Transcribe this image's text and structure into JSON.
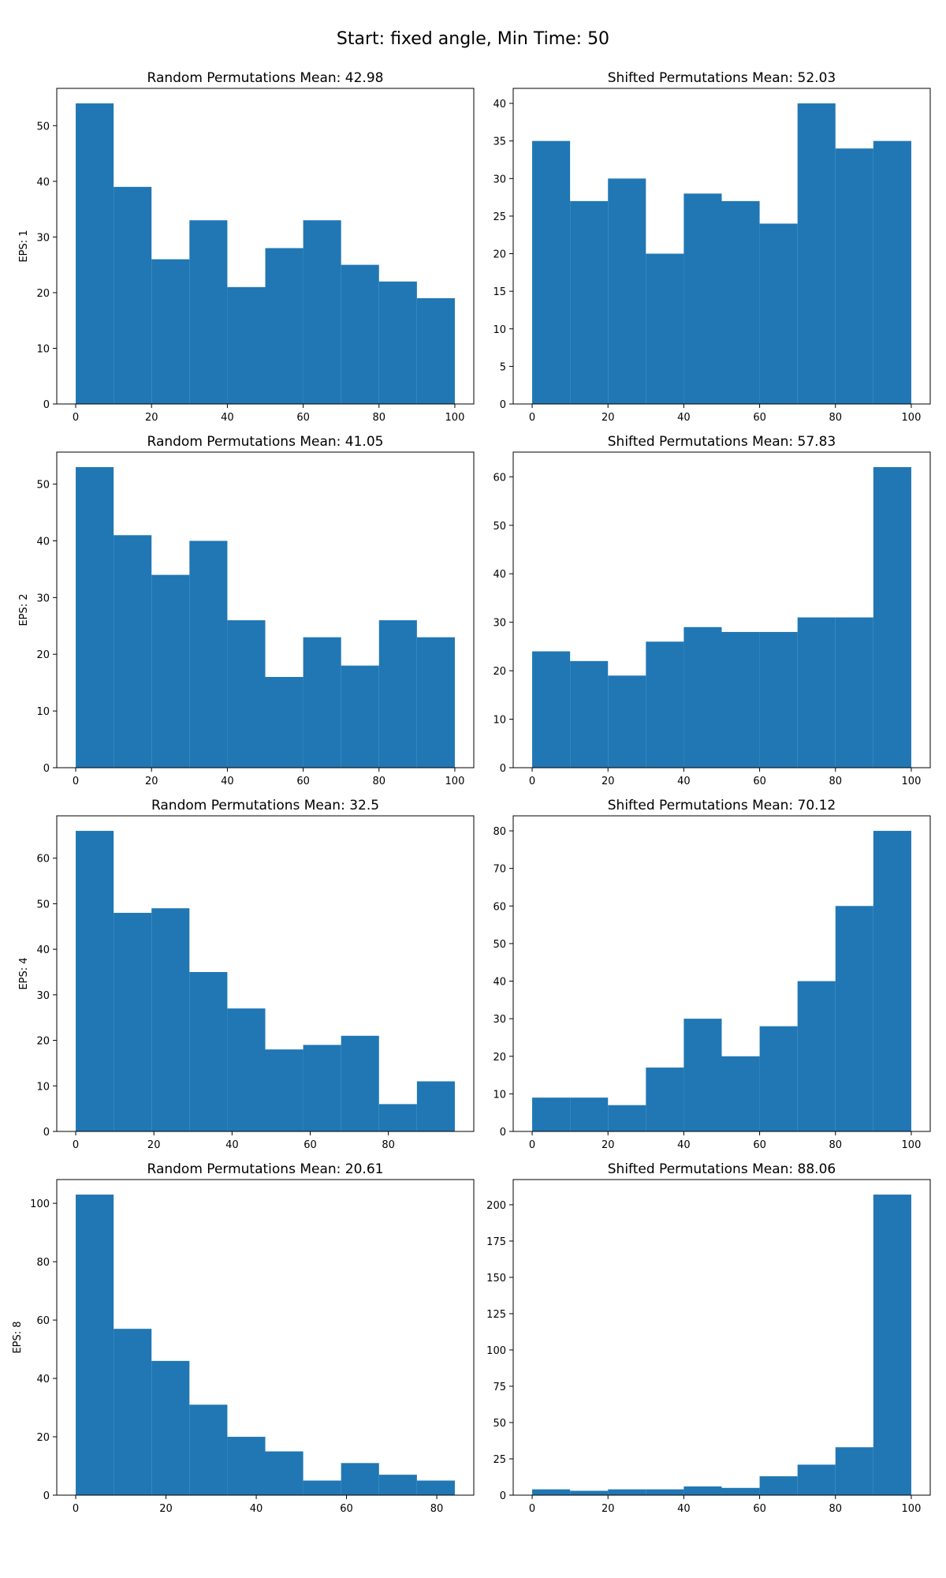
{
  "figure": {
    "suptitle": "Start: fixed angle, Min Time: 50",
    "bar_color": "#2077b4"
  },
  "chart_data": [
    {
      "type": "bar",
      "title": "Random Permutations Mean: 42.98",
      "ylabel": "EPS: 1",
      "bin_edges": [
        0,
        10,
        20,
        30,
        40,
        50,
        60,
        70,
        80,
        90,
        100
      ],
      "values": [
        54,
        39,
        26,
        33,
        21,
        28,
        33,
        25,
        22,
        19
      ],
      "xlim": [
        -5,
        105
      ],
      "ylim": [
        0,
        56.7
      ],
      "xticks": [
        0,
        20,
        40,
        60,
        80,
        100
      ],
      "yticks": [
        0,
        10,
        20,
        30,
        40,
        50
      ]
    },
    {
      "type": "bar",
      "title": "Shifted Permutations Mean: 52.03",
      "ylabel": "",
      "bin_edges": [
        0,
        10,
        20,
        30,
        40,
        50,
        60,
        70,
        80,
        90,
        100
      ],
      "values": [
        35,
        27,
        30,
        20,
        28,
        27,
        24,
        40,
        34,
        35
      ],
      "xlim": [
        -5,
        105
      ],
      "ylim": [
        0,
        42
      ],
      "xticks": [
        0,
        20,
        40,
        60,
        80,
        100
      ],
      "yticks": [
        0,
        5,
        10,
        15,
        20,
        25,
        30,
        35,
        40
      ]
    },
    {
      "type": "bar",
      "title": "Random Permutations Mean: 41.05",
      "ylabel": "EPS: 2",
      "bin_edges": [
        0,
        10,
        20,
        30,
        40,
        50,
        60,
        70,
        80,
        90,
        100
      ],
      "values": [
        53,
        41,
        34,
        40,
        26,
        16,
        23,
        18,
        26,
        23
      ],
      "xlim": [
        -5,
        105
      ],
      "ylim": [
        0,
        55.65
      ],
      "xticks": [
        0,
        20,
        40,
        60,
        80,
        100
      ],
      "yticks": [
        0,
        10,
        20,
        30,
        40,
        50
      ]
    },
    {
      "type": "bar",
      "title": "Shifted Permutations Mean: 57.83",
      "ylabel": "",
      "bin_edges": [
        0,
        10,
        20,
        30,
        40,
        50,
        60,
        70,
        80,
        90,
        100
      ],
      "values": [
        24,
        22,
        19,
        26,
        29,
        28,
        28,
        31,
        31,
        62
      ],
      "xlim": [
        -5,
        105
      ],
      "ylim": [
        0,
        65.1
      ],
      "xticks": [
        0,
        20,
        40,
        60,
        80,
        100
      ],
      "yticks": [
        0,
        10,
        20,
        30,
        40,
        50,
        60
      ]
    },
    {
      "type": "bar",
      "title": "Random Permutations Mean: 32.5",
      "ylabel": "EPS: 4",
      "bin_edges": [
        0,
        9.7,
        19.4,
        29.1,
        38.8,
        48.5,
        58.2,
        67.9,
        77.6,
        87.3,
        97
      ],
      "values": [
        66,
        48,
        49,
        35,
        27,
        18,
        19,
        21,
        6,
        11
      ],
      "xlim": [
        -4.85,
        101.85
      ],
      "ylim": [
        0,
        69.3
      ],
      "xticks": [
        0,
        20,
        40,
        60,
        80
      ],
      "yticks": [
        0,
        10,
        20,
        30,
        40,
        50,
        60
      ]
    },
    {
      "type": "bar",
      "title": "Shifted Permutations Mean: 70.12",
      "ylabel": "",
      "bin_edges": [
        0,
        10,
        20,
        30,
        40,
        50,
        60,
        70,
        80,
        90,
        100
      ],
      "values": [
        9,
        9,
        7,
        17,
        30,
        20,
        28,
        40,
        60,
        80
      ],
      "xlim": [
        -5,
        105
      ],
      "ylim": [
        0,
        84
      ],
      "xticks": [
        0,
        20,
        40,
        60,
        80,
        100
      ],
      "yticks": [
        0,
        10,
        20,
        30,
        40,
        50,
        60,
        70,
        80
      ]
    },
    {
      "type": "bar",
      "title": "Random Permutations Mean: 20.61",
      "ylabel": "EPS: 8",
      "bin_edges": [
        0,
        8.4,
        16.8,
        25.2,
        33.6,
        42,
        50.4,
        58.8,
        67.2,
        75.6,
        84
      ],
      "values": [
        103,
        57,
        46,
        31,
        20,
        15,
        5,
        11,
        7,
        5
      ],
      "xlim": [
        -4.2,
        88.2
      ],
      "ylim": [
        0,
        108.15
      ],
      "xticks": [
        0,
        20,
        40,
        60,
        80
      ],
      "yticks": [
        0,
        20,
        40,
        60,
        80,
        100
      ]
    },
    {
      "type": "bar",
      "title": "Shifted Permutations Mean: 88.06",
      "ylabel": "",
      "bin_edges": [
        0,
        10,
        20,
        30,
        40,
        50,
        60,
        70,
        80,
        90,
        100
      ],
      "values": [
        4,
        3,
        4,
        4,
        6,
        5,
        13,
        21,
        33,
        207
      ],
      "xlim": [
        -5,
        105
      ],
      "ylim": [
        0,
        217.35
      ],
      "xticks": [
        0,
        20,
        40,
        60,
        80,
        100
      ],
      "yticks": [
        0,
        25,
        50,
        75,
        100,
        125,
        150,
        175,
        200
      ]
    }
  ]
}
